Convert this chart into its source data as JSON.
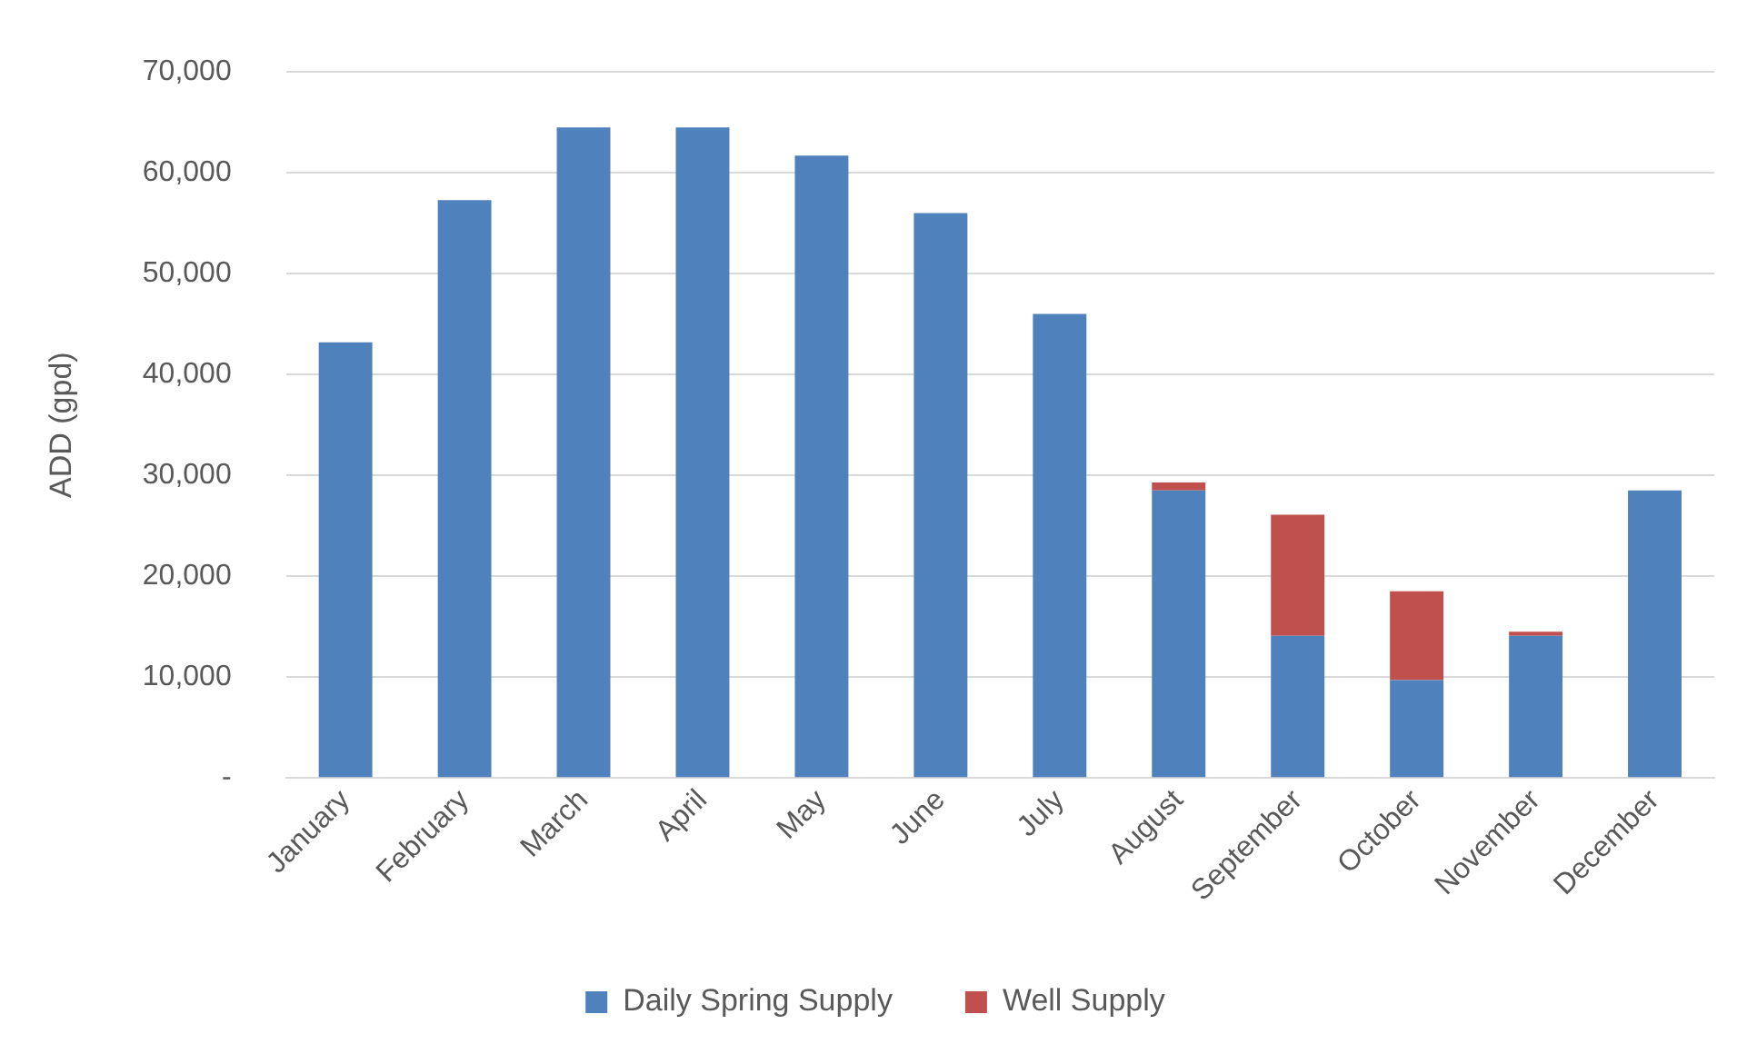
{
  "chart_data": {
    "type": "bar",
    "stacked": true,
    "ylabel": "ADD (gpd)",
    "categories": [
      "January",
      "February",
      "March",
      "April",
      "May",
      "June",
      "July",
      "August",
      "September",
      "October",
      "November",
      "December"
    ],
    "series": [
      {
        "name": "Daily Spring Supply",
        "color": "#4f81bd",
        "values": [
          43200,
          57300,
          64500,
          64500,
          61700,
          56000,
          46000,
          28500,
          14100,
          9700,
          14100,
          28500
        ]
      },
      {
        "name": "Well Supply",
        "color": "#c0504d",
        "values": [
          null,
          null,
          null,
          null,
          null,
          null,
          null,
          800,
          12000,
          8800,
          400,
          null
        ]
      }
    ],
    "ylim": [
      0,
      70000
    ],
    "yticks": [
      {
        "value": 0,
        "label": "-"
      },
      {
        "value": 10000,
        "label": "10,000"
      },
      {
        "value": 20000,
        "label": "20,000"
      },
      {
        "value": 30000,
        "label": "30,000"
      },
      {
        "value": 40000,
        "label": "40,000"
      },
      {
        "value": 50000,
        "label": "50,000"
      },
      {
        "value": 60000,
        "label": "60,000"
      },
      {
        "value": 70000,
        "label": "70,000"
      }
    ],
    "grid": "y",
    "legend": "bottom"
  }
}
